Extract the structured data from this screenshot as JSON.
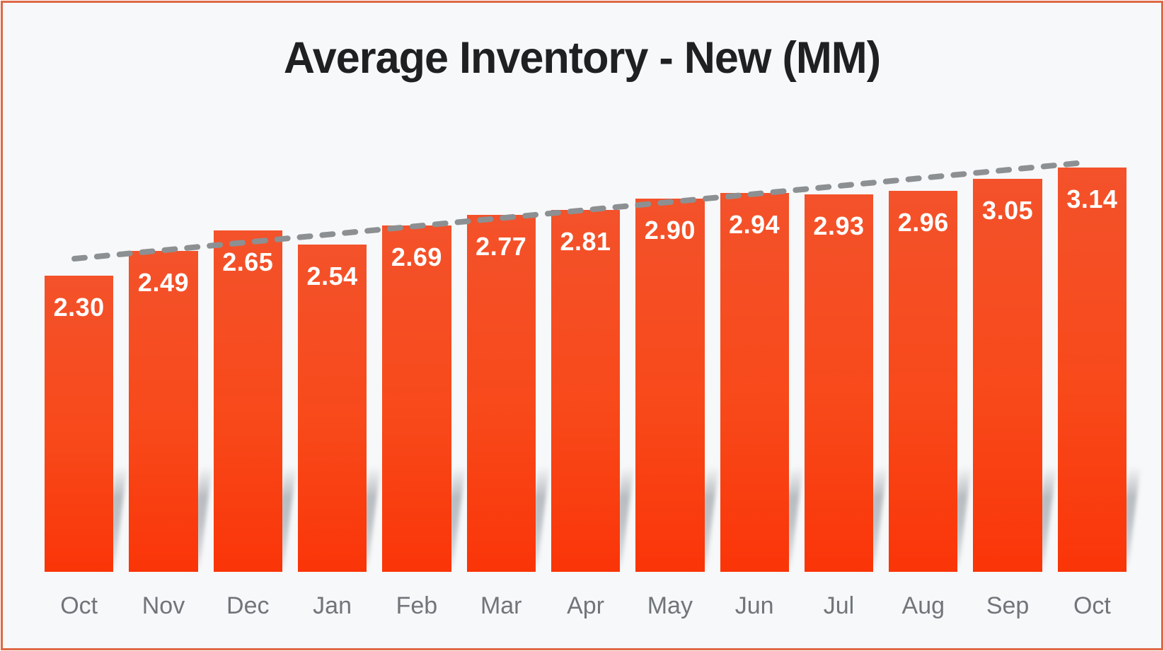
{
  "frame": {
    "border_color": "#df6846",
    "background_color": "#f7f8f9"
  },
  "chart_data": {
    "type": "bar",
    "title": "Average Inventory - New (MM)",
    "categories": [
      "Oct",
      "Nov",
      "Dec",
      "Jan",
      "Feb",
      "Mar",
      "Apr",
      "May",
      "Jun",
      "Jul",
      "Aug",
      "Sep",
      "Oct"
    ],
    "values": [
      2.3,
      2.49,
      2.65,
      2.54,
      2.69,
      2.77,
      2.81,
      2.9,
      2.94,
      2.93,
      2.96,
      3.05,
      3.14
    ],
    "value_labels": [
      "2.30",
      "2.49",
      "2.65",
      "2.54",
      "2.69",
      "2.77",
      "2.81",
      "2.90",
      "2.94",
      "2.93",
      "2.96",
      "3.05",
      "3.14"
    ],
    "xlabel": "",
    "ylabel": "",
    "ylim": [
      0,
      3.5
    ],
    "grid": false,
    "legend": false,
    "axes_shown": false,
    "colors": {
      "bar_top": "#f3522b",
      "bar_mid": "#f8491a",
      "bar_bottom": "#fa3508",
      "value_label": "#ffffff",
      "axis_label": "#71757a",
      "title": "#1e2022",
      "trendline": "#8d9092",
      "gap_shadow": "#aab0b5"
    },
    "trendline": {
      "style": "dashed",
      "color": "#8d9092",
      "start_value": 2.43,
      "end_value": 3.17
    }
  }
}
